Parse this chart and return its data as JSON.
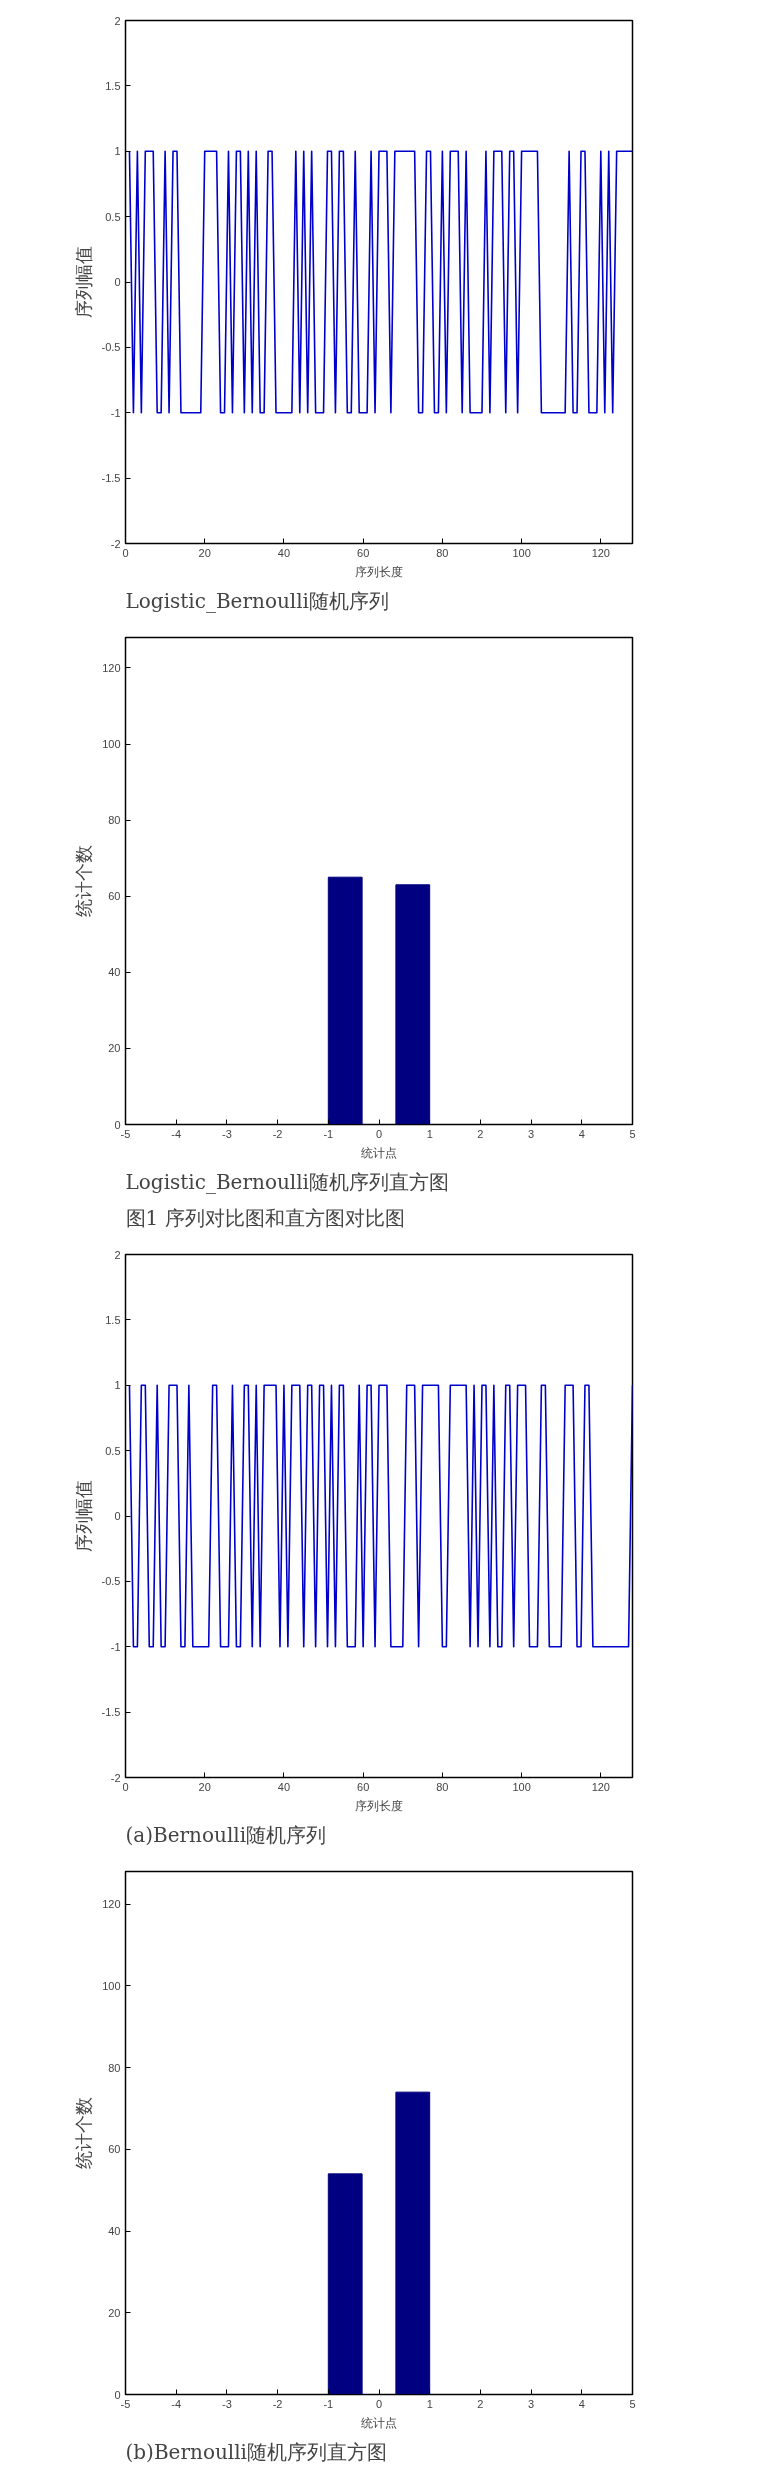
{
  "chart_data": [
    {
      "type": "line",
      "xlabel": "序列长度",
      "ylabel": "序列幅值",
      "annotations": [
        "Logistic_Bernoulli随机序列"
      ],
      "x": [
        1,
        2,
        3,
        4,
        5,
        6,
        7,
        8,
        9,
        10,
        11,
        12,
        13,
        14,
        15,
        16,
        17,
        18,
        19,
        20,
        21,
        22,
        23,
        24,
        25,
        26,
        27,
        28,
        29,
        30,
        31,
        32,
        33,
        34,
        35,
        36,
        37,
        38,
        39,
        40,
        41,
        42,
        43,
        44,
        45,
        46,
        47,
        48,
        49,
        50,
        51,
        52,
        53,
        54,
        55,
        56,
        57,
        58,
        59,
        60,
        61,
        62,
        63,
        64,
        65,
        66,
        67,
        68,
        69,
        70,
        71,
        72,
        73,
        74,
        75,
        76,
        77,
        78,
        79,
        80,
        81,
        82,
        83,
        84,
        85,
        86,
        87,
        88,
        89,
        90,
        91,
        92,
        93,
        94,
        95,
        96,
        97,
        98,
        99,
        100,
        101,
        102,
        103,
        104,
        105,
        106,
        107,
        108,
        109,
        110,
        111,
        112,
        113,
        114,
        115,
        116,
        117,
        118,
        119,
        120,
        121,
        122,
        123,
        124,
        125,
        126,
        127,
        128
      ],
      "series": [
        {
          "color": "#0000cc",
          "values": [
            1,
            -1,
            1,
            -1,
            1,
            1,
            1,
            -1,
            -1,
            1,
            -1,
            1,
            1,
            -1,
            -1,
            -1,
            -1,
            -1,
            -1,
            1,
            1,
            1,
            1,
            -1,
            -1,
            1,
            -1,
            1,
            1,
            -1,
            1,
            -1,
            1,
            -1,
            -1,
            1,
            1,
            -1,
            -1,
            -1,
            -1,
            -1,
            1,
            -1,
            1,
            -1,
            1,
            -1,
            -1,
            -1,
            1,
            1,
            -1,
            1,
            1,
            -1,
            -1,
            1,
            -1,
            -1,
            -1,
            1,
            -1,
            1,
            1,
            1,
            -1,
            1,
            1,
            1,
            1,
            1,
            1,
            -1,
            -1,
            1,
            1,
            -1,
            -1,
            1,
            -1,
            1,
            1,
            1,
            -1,
            1,
            -1,
            -1,
            -1,
            -1,
            1,
            -1,
            1,
            1,
            1,
            -1,
            1,
            1,
            -1,
            1,
            1,
            1,
            1,
            1,
            -1,
            -1,
            -1,
            -1,
            -1,
            -1,
            -1,
            1,
            -1,
            -1,
            1,
            1,
            -1,
            -1,
            -1,
            1,
            -1,
            1,
            -1,
            1,
            1,
            1,
            1,
            1
          ]
        }
      ],
      "xlim": [
        0,
        128
      ],
      "xticks": [
        0,
        20,
        40,
        60,
        80,
        100,
        120
      ],
      "ylim": [
        -2,
        2
      ],
      "yticks": [
        -2,
        -1.5,
        -1,
        -0.5,
        0,
        0.5,
        1,
        1.5,
        2
      ]
    },
    {
      "type": "histogram",
      "xlabel": "统计点",
      "ylabel": "统计个数",
      "annotations": [
        "Logistic_Bernoulli随机序列直方图",
        "图1  序列对比图和直方图对比图"
      ],
      "bins": [
        -1,
        -0.333,
        0.333,
        1
      ],
      "values": [
        65,
        0,
        63
      ],
      "color": "#000080",
      "xlim": [
        -5,
        5
      ],
      "xticks": [
        -5,
        -4,
        -3,
        -2,
        -1,
        0,
        1,
        2,
        3,
        4,
        5
      ],
      "ylim": [
        0,
        128
      ],
      "yticks": [
        0,
        20,
        40,
        60,
        80,
        100,
        120
      ]
    },
    {
      "type": "line",
      "xlabel": "序列长度",
      "ylabel": "序列幅值",
      "annotations": [
        "(a)Bernoulli随机序列"
      ],
      "x": [
        1,
        2,
        3,
        4,
        5,
        6,
        7,
        8,
        9,
        10,
        11,
        12,
        13,
        14,
        15,
        16,
        17,
        18,
        19,
        20,
        21,
        22,
        23,
        24,
        25,
        26,
        27,
        28,
        29,
        30,
        31,
        32,
        33,
        34,
        35,
        36,
        37,
        38,
        39,
        40,
        41,
        42,
        43,
        44,
        45,
        46,
        47,
        48,
        49,
        50,
        51,
        52,
        53,
        54,
        55,
        56,
        57,
        58,
        59,
        60,
        61,
        62,
        63,
        64,
        65,
        66,
        67,
        68,
        69,
        70,
        71,
        72,
        73,
        74,
        75,
        76,
        77,
        78,
        79,
        80,
        81,
        82,
        83,
        84,
        85,
        86,
        87,
        88,
        89,
        90,
        91,
        92,
        93,
        94,
        95,
        96,
        97,
        98,
        99,
        100,
        101,
        102,
        103,
        104,
        105,
        106,
        107,
        108,
        109,
        110,
        111,
        112,
        113,
        114,
        115,
        116,
        117,
        118,
        119,
        120,
        121,
        122,
        123,
        124,
        125,
        126,
        127,
        128
      ],
      "series": [
        {
          "color": "#0000cc",
          "values": [
            1,
            -1,
            -1,
            1,
            1,
            -1,
            -1,
            1,
            -1,
            -1,
            1,
            1,
            1,
            -1,
            -1,
            1,
            -1,
            -1,
            -1,
            -1,
            -1,
            1,
            1,
            -1,
            -1,
            -1,
            1,
            -1,
            -1,
            1,
            1,
            -1,
            1,
            -1,
            1,
            1,
            1,
            1,
            -1,
            1,
            -1,
            1,
            1,
            1,
            -1,
            1,
            1,
            -1,
            1,
            1,
            -1,
            1,
            -1,
            1,
            1,
            -1,
            -1,
            -1,
            1,
            -1,
            1,
            1,
            -1,
            1,
            1,
            1,
            -1,
            -1,
            -1,
            -1,
            1,
            1,
            1,
            -1,
            1,
            1,
            1,
            1,
            1,
            -1,
            -1,
            1,
            1,
            1,
            1,
            1,
            -1,
            1,
            -1,
            1,
            1,
            -1,
            1,
            -1,
            -1,
            1,
            1,
            -1,
            1,
            1,
            1,
            -1,
            -1,
            -1,
            1,
            1,
            -1,
            -1,
            -1,
            -1,
            1,
            1,
            1,
            -1,
            -1,
            1,
            1,
            -1,
            -1,
            -1,
            -1,
            -1,
            -1,
            -1,
            -1,
            -1,
            -1,
            1
          ]
        }
      ],
      "xlim": [
        0,
        128
      ],
      "xticks": [
        0,
        20,
        40,
        60,
        80,
        100,
        120
      ],
      "ylim": [
        -2,
        2
      ],
      "yticks": [
        -2,
        -1.5,
        -1,
        -0.5,
        0,
        0.5,
        1,
        1.5,
        2
      ]
    },
    {
      "type": "histogram",
      "xlabel": "统计点",
      "ylabel": "统计个数",
      "annotations": [
        "(b)Bernoulli随机序列直方图"
      ],
      "bins": [
        -1,
        -0.333,
        0.333,
        1
      ],
      "values": [
        54,
        0,
        74
      ],
      "color": "#000080",
      "xlim": [
        -5,
        5
      ],
      "xticks": [
        -5,
        -4,
        -3,
        -2,
        -1,
        0,
        1,
        2,
        3,
        4,
        5
      ],
      "ylim": [
        0,
        128
      ],
      "yticks": [
        0,
        20,
        40,
        60,
        80,
        100,
        120
      ]
    }
  ]
}
